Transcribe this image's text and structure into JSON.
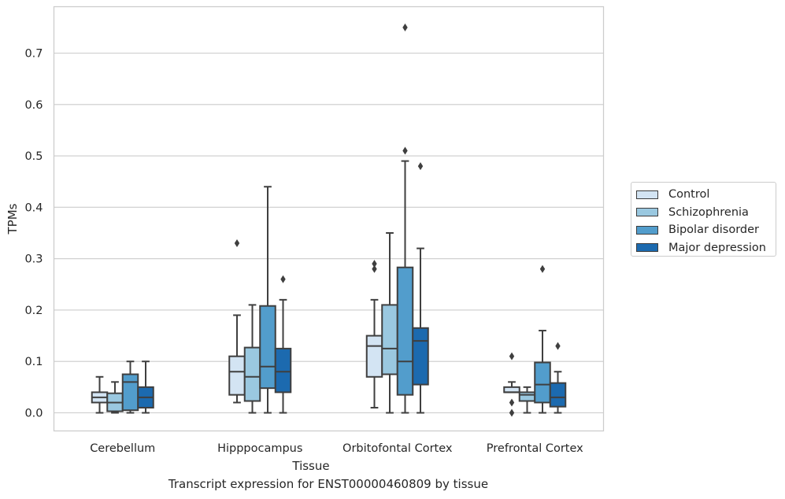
{
  "caption": "Transcript expression for ENST00000460809 by tissue",
  "chart_data": {
    "type": "boxplot",
    "xlabel": "Tissue",
    "ylabel": "TPMs",
    "ylim": [
      -0.035,
      0.79
    ],
    "yticks": [
      "0.0",
      "0.1",
      "0.2",
      "0.3",
      "0.4",
      "0.5",
      "0.6",
      "0.7"
    ],
    "ytick_values": [
      0,
      0.1,
      0.2,
      0.3,
      0.4,
      0.5,
      0.6,
      0.7
    ],
    "grid": "horizontal",
    "legend_position": "right",
    "categories": [
      "Cerebellum",
      "Hipppocampus",
      "Orbitofontal Cortex",
      "Prefrontal Cortex"
    ],
    "series": [
      {
        "name": "Control",
        "color": "#d3e4f3",
        "boxes": [
          {
            "whislo": 0.0,
            "q1": 0.02,
            "med": 0.03,
            "q3": 0.04,
            "whishi": 0.07,
            "fliers": []
          },
          {
            "whislo": 0.02,
            "q1": 0.035,
            "med": 0.08,
            "q3": 0.11,
            "whishi": 0.19,
            "fliers": [
              0.33
            ]
          },
          {
            "whislo": 0.01,
            "q1": 0.07,
            "med": 0.13,
            "q3": 0.15,
            "whishi": 0.22,
            "fliers": [
              0.28,
              0.29
            ]
          },
          {
            "whislo": 0.04,
            "q1": 0.04,
            "med": 0.04,
            "q3": 0.05,
            "whishi": 0.06,
            "fliers": [
              0.0,
              0.02,
              0.11
            ]
          }
        ]
      },
      {
        "name": "Schizophrenia",
        "color": "#9ac8e0",
        "boxes": [
          {
            "whislo": 0.0,
            "q1": 0.003,
            "med": 0.02,
            "q3": 0.038,
            "whishi": 0.06,
            "fliers": []
          },
          {
            "whislo": 0.0,
            "q1": 0.023,
            "med": 0.07,
            "q3": 0.127,
            "whishi": 0.21,
            "fliers": []
          },
          {
            "whislo": 0.0,
            "q1": 0.075,
            "med": 0.125,
            "q3": 0.21,
            "whishi": 0.35,
            "fliers": []
          },
          {
            "whislo": 0.0,
            "q1": 0.023,
            "med": 0.035,
            "q3": 0.04,
            "whishi": 0.05,
            "fliers": []
          }
        ]
      },
      {
        "name": "Bipolar disorder",
        "color": "#529dcc",
        "boxes": [
          {
            "whislo": 0.0,
            "q1": 0.005,
            "med": 0.06,
            "q3": 0.075,
            "whishi": 0.1,
            "fliers": []
          },
          {
            "whislo": 0.0,
            "q1": 0.048,
            "med": 0.09,
            "q3": 0.208,
            "whishi": 0.44,
            "fliers": []
          },
          {
            "whislo": 0.0,
            "q1": 0.035,
            "med": 0.1,
            "q3": 0.283,
            "whishi": 0.49,
            "fliers": [
              0.51,
              0.75
            ]
          },
          {
            "whislo": 0.0,
            "q1": 0.02,
            "med": 0.055,
            "q3": 0.098,
            "whishi": 0.16,
            "fliers": [
              0.28
            ]
          }
        ]
      },
      {
        "name": "Major depression",
        "color": "#1c6aaf",
        "boxes": [
          {
            "whislo": 0.0,
            "q1": 0.01,
            "med": 0.03,
            "q3": 0.05,
            "whishi": 0.1,
            "fliers": []
          },
          {
            "whislo": 0.0,
            "q1": 0.04,
            "med": 0.08,
            "q3": 0.125,
            "whishi": 0.22,
            "fliers": [
              0.26
            ]
          },
          {
            "whislo": 0.0,
            "q1": 0.055,
            "med": 0.14,
            "q3": 0.165,
            "whishi": 0.32,
            "fliers": [
              0.48
            ]
          },
          {
            "whislo": 0.0,
            "q1": 0.012,
            "med": 0.03,
            "q3": 0.058,
            "whishi": 0.08,
            "fliers": [
              0.13
            ]
          }
        ]
      }
    ]
  }
}
